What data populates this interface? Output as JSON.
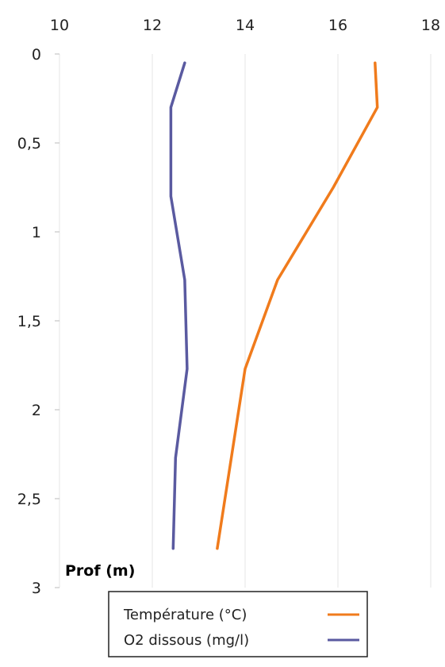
{
  "chart_data": {
    "type": "line",
    "title": "",
    "xlabel": "",
    "ylabel": "Prof (m)",
    "xlim": [
      10,
      18
    ],
    "ylim": [
      0,
      3
    ],
    "y_inverted": true,
    "x_axis_position": "top",
    "x_ticks": [
      "10",
      "12",
      "14",
      "16",
      "18"
    ],
    "y_ticks": [
      "0",
      "0,5",
      "1",
      "1,5",
      "2",
      "2,5",
      "3"
    ],
    "grid": "vertical",
    "legend_position": "bottom",
    "series": [
      {
        "name": "Température (°C)",
        "color": "#f07b1c",
        "points": [
          {
            "x": 16.8,
            "y": 0.05
          },
          {
            "x": 16.85,
            "y": 0.3
          },
          {
            "x": 15.9,
            "y": 0.75
          },
          {
            "x": 14.7,
            "y": 1.27
          },
          {
            "x": 14.0,
            "y": 1.77
          },
          {
            "x": 13.4,
            "y": 2.78
          }
        ]
      },
      {
        "name": "O2 dissous (mg/l)",
        "color": "#5a5aa0",
        "points": [
          {
            "x": 12.7,
            "y": 0.05
          },
          {
            "x": 12.4,
            "y": 0.3
          },
          {
            "x": 12.4,
            "y": 0.8
          },
          {
            "x": 12.7,
            "y": 1.27
          },
          {
            "x": 12.75,
            "y": 1.77
          },
          {
            "x": 12.5,
            "y": 2.27
          },
          {
            "x": 12.45,
            "y": 2.78
          }
        ]
      }
    ]
  }
}
